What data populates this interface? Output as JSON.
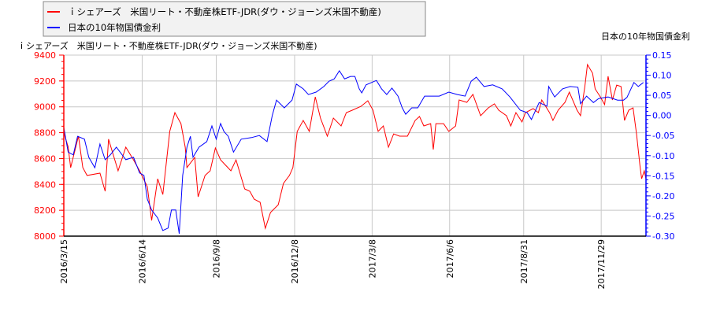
{
  "chart_data": {
    "type": "line",
    "title": "",
    "left_axis": {
      "label": "ｉシェアーズ　米国リート・不動産株ETF-JDR(ダウ・ジョーンズ米国不動産)",
      "ylim": [
        8000,
        9400
      ],
      "ticks": [
        "8000",
        "8200",
        "8400",
        "8600",
        "8800",
        "9000",
        "9200",
        "9400"
      ],
      "color": "#ff0000"
    },
    "right_axis": {
      "label": "日本の10年物国債金利",
      "ylim": [
        -0.3,
        0.15
      ],
      "ticks": [
        "-0.30",
        "-0.25",
        "-0.20",
        "-0.15",
        "-0.10",
        "-0.05",
        "0.00",
        "0.05",
        "0.10",
        "0.15"
      ],
      "color": "#0000ff"
    },
    "x_axis": {
      "xlim": [
        "2016-03-15",
        "2018-01-20"
      ],
      "ticks": [
        {
          "date": "2016-03-15",
          "label": "2016/3/15"
        },
        {
          "date": "2016-06-14",
          "label": "2016/6/14"
        },
        {
          "date": "2016-09-08",
          "label": "2016/9/8"
        },
        {
          "date": "2016-12-08",
          "label": "2016/12/8"
        },
        {
          "date": "2017-03-08",
          "label": "2017/3/8"
        },
        {
          "date": "2017-06-06",
          "label": "2017/6/6"
        },
        {
          "date": "2017-08-31",
          "label": "2017/8/31"
        },
        {
          "date": "2017-11-29",
          "label": "2017/11/29"
        }
      ]
    },
    "grid": true,
    "legend": {
      "placement": "top-left",
      "entries": [
        {
          "label": "ｉシェアーズ　米国リート・不動産株ETF-JDR(ダウ・ジョーンズ米国不動産)",
          "color": "#ff0000"
        },
        {
          "label": "日本の10年物国債金利",
          "color": "#0000ff"
        }
      ]
    },
    "series": [
      {
        "name": "ｉシェアーズ　米国リート・不動産株ETF-JDR(ダウ・ジョーンズ米国不動産)",
        "axis": "left",
        "color": "#ff0000",
        "points": [
          [
            "2016-03-15",
            8800
          ],
          [
            "2016-03-20",
            8690
          ],
          [
            "2016-03-23",
            8530
          ],
          [
            "2016-04-01",
            8773
          ],
          [
            "2016-04-06",
            8530
          ],
          [
            "2016-04-11",
            8469
          ],
          [
            "2016-04-26",
            8487
          ],
          [
            "2016-05-02",
            8347
          ],
          [
            "2016-05-06",
            8750
          ],
          [
            "2016-05-17",
            8505
          ],
          [
            "2016-05-26",
            8688
          ],
          [
            "2016-06-04",
            8590
          ],
          [
            "2016-06-11",
            8505
          ],
          [
            "2016-06-20",
            8383
          ],
          [
            "2016-06-25",
            8122
          ],
          [
            "2016-07-02",
            8444
          ],
          [
            "2016-07-08",
            8322
          ],
          [
            "2016-07-16",
            8810
          ],
          [
            "2016-07-22",
            8955
          ],
          [
            "2016-07-29",
            8870
          ],
          [
            "2016-08-03",
            8688
          ],
          [
            "2016-08-05",
            8530
          ],
          [
            "2016-08-14",
            8609
          ],
          [
            "2016-08-18",
            8304
          ],
          [
            "2016-08-26",
            8469
          ],
          [
            "2016-09-01",
            8505
          ],
          [
            "2016-09-07",
            8682
          ],
          [
            "2016-09-13",
            8590
          ],
          [
            "2016-09-19",
            8548
          ],
          [
            "2016-09-25",
            8505
          ],
          [
            "2016-10-01",
            8590
          ],
          [
            "2016-10-11",
            8365
          ],
          [
            "2016-10-17",
            8347
          ],
          [
            "2016-10-22",
            8286
          ],
          [
            "2016-10-29",
            8262
          ],
          [
            "2016-11-04",
            8061
          ],
          [
            "2016-11-10",
            8183
          ],
          [
            "2016-11-19",
            8243
          ],
          [
            "2016-11-25",
            8408
          ],
          [
            "2016-12-02",
            8469
          ],
          [
            "2016-12-06",
            8530
          ],
          [
            "2016-12-11",
            8810
          ],
          [
            "2016-12-18",
            8895
          ],
          [
            "2016-12-25",
            8810
          ],
          [
            "2017-01-01",
            9077
          ],
          [
            "2017-01-07",
            8913
          ],
          [
            "2017-01-15",
            8773
          ],
          [
            "2017-01-22",
            8913
          ],
          [
            "2017-01-31",
            8852
          ],
          [
            "2017-02-06",
            8955
          ],
          [
            "2017-02-13",
            8974
          ],
          [
            "2017-02-23",
            9004
          ],
          [
            "2017-03-03",
            9047
          ],
          [
            "2017-03-09",
            8974
          ],
          [
            "2017-03-15",
            8810
          ],
          [
            "2017-03-21",
            8852
          ],
          [
            "2017-03-27",
            8688
          ],
          [
            "2017-04-02",
            8791
          ],
          [
            "2017-04-09",
            8773
          ],
          [
            "2017-04-18",
            8773
          ],
          [
            "2017-04-27",
            8895
          ],
          [
            "2017-05-02",
            8925
          ],
          [
            "2017-05-07",
            8852
          ],
          [
            "2017-05-15",
            8870
          ],
          [
            "2017-05-18",
            8670
          ],
          [
            "2017-05-21",
            8870
          ],
          [
            "2017-05-30",
            8870
          ],
          [
            "2017-06-05",
            8810
          ],
          [
            "2017-06-13",
            8852
          ],
          [
            "2017-06-17",
            9053
          ],
          [
            "2017-06-26",
            9035
          ],
          [
            "2017-07-03",
            9096
          ],
          [
            "2017-07-12",
            8931
          ],
          [
            "2017-07-21",
            8992
          ],
          [
            "2017-07-28",
            9023
          ],
          [
            "2017-08-02",
            8974
          ],
          [
            "2017-08-11",
            8931
          ],
          [
            "2017-08-16",
            8852
          ],
          [
            "2017-08-22",
            8955
          ],
          [
            "2017-08-29",
            8883
          ],
          [
            "2017-09-02",
            8955
          ],
          [
            "2017-09-11",
            8986
          ],
          [
            "2017-09-17",
            8955
          ],
          [
            "2017-09-21",
            9053
          ],
          [
            "2017-09-30",
            8955
          ],
          [
            "2017-10-04",
            8895
          ],
          [
            "2017-10-10",
            8974
          ],
          [
            "2017-10-18",
            9035
          ],
          [
            "2017-10-23",
            9114
          ],
          [
            "2017-11-01",
            8974
          ],
          [
            "2017-11-05",
            8931
          ],
          [
            "2017-11-10",
            9157
          ],
          [
            "2017-11-13",
            9327
          ],
          [
            "2017-11-19",
            9260
          ],
          [
            "2017-11-22",
            9138
          ],
          [
            "2017-11-28",
            9077
          ],
          [
            "2017-12-03",
            9017
          ],
          [
            "2017-12-07",
            9236
          ],
          [
            "2017-12-12",
            9053
          ],
          [
            "2017-12-17",
            9168
          ],
          [
            "2017-12-22",
            9157
          ],
          [
            "2017-12-26",
            8895
          ],
          [
            "2017-12-31",
            8974
          ],
          [
            "2018-01-05",
            8992
          ],
          [
            "2018-01-09",
            8791
          ],
          [
            "2018-01-13",
            8548
          ],
          [
            "2018-01-15",
            8444
          ],
          [
            "2018-01-18",
            8505
          ],
          [
            "2018-01-20",
            8444
          ]
        ]
      },
      {
        "name": "日本の10年物国債金利",
        "axis": "right",
        "color": "#0000ff",
        "points": [
          [
            "2016-03-15",
            -0.03
          ],
          [
            "2016-03-20",
            -0.091
          ],
          [
            "2016-03-26",
            -0.098
          ],
          [
            "2016-03-31",
            -0.052
          ],
          [
            "2016-04-08",
            -0.059
          ],
          [
            "2016-04-13",
            -0.104
          ],
          [
            "2016-04-20",
            -0.13
          ],
          [
            "2016-04-26",
            -0.071
          ],
          [
            "2016-05-02",
            -0.11
          ],
          [
            "2016-05-08",
            -0.098
          ],
          [
            "2016-05-15",
            -0.079
          ],
          [
            "2016-05-26",
            -0.11
          ],
          [
            "2016-06-04",
            -0.104
          ],
          [
            "2016-06-11",
            -0.143
          ],
          [
            "2016-06-16",
            -0.149
          ],
          [
            "2016-06-20",
            -0.208
          ],
          [
            "2016-06-25",
            -0.235
          ],
          [
            "2016-07-02",
            -0.255
          ],
          [
            "2016-07-08",
            -0.286
          ],
          [
            "2016-07-14",
            -0.28
          ],
          [
            "2016-07-18",
            -0.235
          ],
          [
            "2016-07-23",
            -0.235
          ],
          [
            "2016-07-27",
            -0.294
          ],
          [
            "2016-07-31",
            -0.149
          ],
          [
            "2016-08-05",
            -0.079
          ],
          [
            "2016-08-09",
            -0.052
          ],
          [
            "2016-08-12",
            -0.104
          ],
          [
            "2016-08-19",
            -0.079
          ],
          [
            "2016-08-28",
            -0.065
          ],
          [
            "2016-09-03",
            -0.026
          ],
          [
            "2016-09-08",
            -0.059
          ],
          [
            "2016-09-13",
            -0.02
          ],
          [
            "2016-09-17",
            -0.04
          ],
          [
            "2016-09-22",
            -0.052
          ],
          [
            "2016-09-28",
            -0.091
          ],
          [
            "2016-10-07",
            -0.059
          ],
          [
            "2016-10-19",
            -0.055
          ],
          [
            "2016-10-28",
            -0.05
          ],
          [
            "2016-11-06",
            -0.065
          ],
          [
            "2016-11-12",
            0.0
          ],
          [
            "2016-11-17",
            0.038
          ],
          [
            "2016-11-26",
            0.019
          ],
          [
            "2016-12-05",
            0.038
          ],
          [
            "2016-12-10",
            0.078
          ],
          [
            "2016-12-18",
            0.066
          ],
          [
            "2016-12-24",
            0.052
          ],
          [
            "2017-01-02",
            0.058
          ],
          [
            "2017-01-11",
            0.072
          ],
          [
            "2017-01-17",
            0.085
          ],
          [
            "2017-01-23",
            0.091
          ],
          [
            "2017-01-29",
            0.111
          ],
          [
            "2017-02-04",
            0.091
          ],
          [
            "2017-02-11",
            0.097
          ],
          [
            "2017-02-16",
            0.097
          ],
          [
            "2017-02-21",
            0.066
          ],
          [
            "2017-02-24",
            0.056
          ],
          [
            "2017-03-01",
            0.076
          ],
          [
            "2017-03-13",
            0.087
          ],
          [
            "2017-03-19",
            0.066
          ],
          [
            "2017-03-25",
            0.052
          ],
          [
            "2017-03-31",
            0.068
          ],
          [
            "2017-04-07",
            0.048
          ],
          [
            "2017-04-12",
            0.019
          ],
          [
            "2017-04-16",
            0.003
          ],
          [
            "2017-04-23",
            0.019
          ],
          [
            "2017-04-30",
            0.019
          ],
          [
            "2017-05-08",
            0.048
          ],
          [
            "2017-05-16",
            0.048
          ],
          [
            "2017-05-25",
            0.048
          ],
          [
            "2017-06-05",
            0.058
          ],
          [
            "2017-06-15",
            0.052
          ],
          [
            "2017-06-24",
            0.048
          ],
          [
            "2017-07-01",
            0.085
          ],
          [
            "2017-07-07",
            0.095
          ],
          [
            "2017-07-16",
            0.072
          ],
          [
            "2017-07-26",
            0.076
          ],
          [
            "2017-08-06",
            0.066
          ],
          [
            "2017-08-15",
            0.046
          ],
          [
            "2017-08-27",
            0.013
          ],
          [
            "2017-09-04",
            0.007
          ],
          [
            "2017-09-09",
            -0.01
          ],
          [
            "2017-09-18",
            0.032
          ],
          [
            "2017-09-27",
            0.023
          ],
          [
            "2017-09-29",
            0.072
          ],
          [
            "2017-10-06",
            0.046
          ],
          [
            "2017-10-15",
            0.066
          ],
          [
            "2017-10-24",
            0.072
          ],
          [
            "2017-11-02",
            0.07
          ],
          [
            "2017-11-05",
            0.029
          ],
          [
            "2017-11-12",
            0.048
          ],
          [
            "2017-11-20",
            0.032
          ],
          [
            "2017-11-26",
            0.042
          ],
          [
            "2017-12-07",
            0.046
          ],
          [
            "2017-12-18",
            0.038
          ],
          [
            "2017-12-25",
            0.038
          ],
          [
            "2017-12-29",
            0.045
          ],
          [
            "2018-01-06",
            0.082
          ],
          [
            "2018-01-11",
            0.072
          ],
          [
            "2018-01-17",
            0.082
          ]
        ]
      }
    ]
  }
}
